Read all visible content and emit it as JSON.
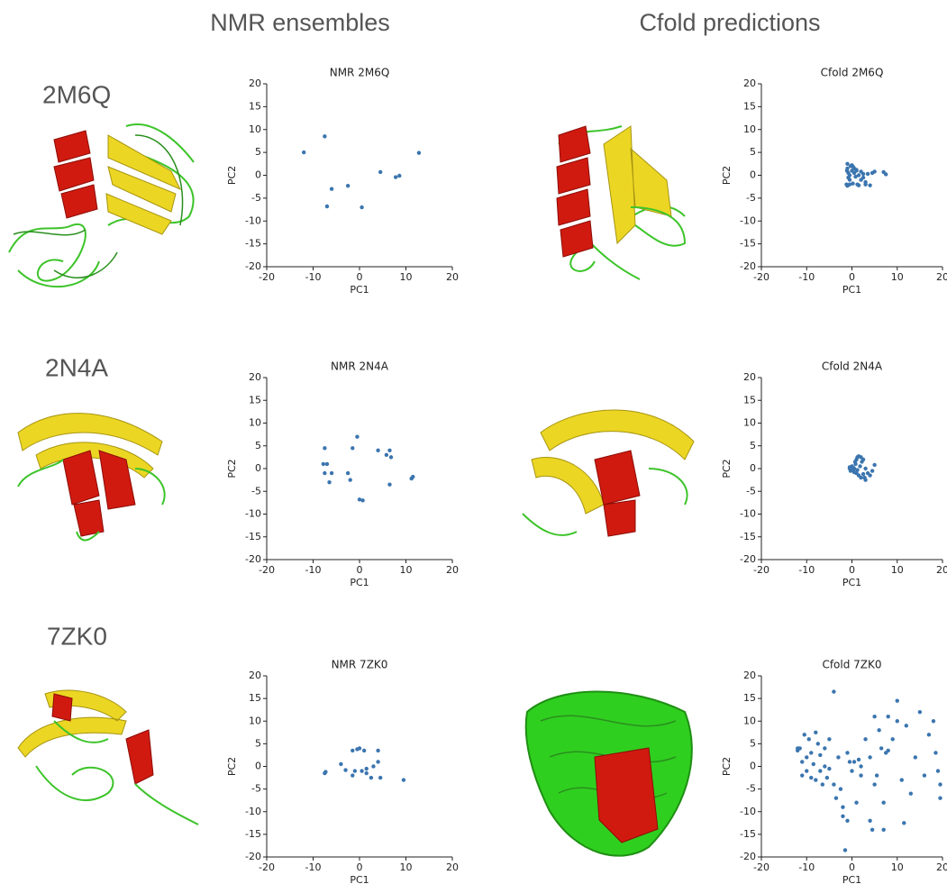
{
  "column_headers": [
    "NMR ensembles",
    "Cfold predictions"
  ],
  "row_labels": [
    "2M6Q",
    "2N4A",
    "7ZK0"
  ],
  "chart_data": [
    {
      "type": "scatter",
      "title": "NMR 2M6Q",
      "xlabel": "PC1",
      "ylabel": "PC2",
      "color": "#3b75af",
      "x": [
        -12,
        -7.5,
        -6,
        -7,
        -2.5,
        0.5,
        4.5,
        7.8,
        8.6,
        12.8
      ],
      "y": [
        5,
        8.5,
        -3,
        -6.8,
        -2.3,
        -7,
        0.7,
        -0.4,
        -0.1,
        4.9
      ],
      "xlim": [
        -20,
        20
      ],
      "ylim": [
        -20,
        20
      ],
      "xticks": [
        -20,
        -10,
        0,
        10,
        20
      ],
      "yticks": [
        -20,
        -15,
        -10,
        -5,
        0,
        5,
        10,
        15,
        20
      ]
    },
    {
      "type": "scatter",
      "title": "Cfold 2M6Q",
      "xlabel": "PC1",
      "ylabel": "PC2",
      "color": "#3b75af",
      "x": [
        -1,
        -1,
        -0.8,
        -0.5,
        -0.5,
        -1.2,
        -0.3,
        0,
        0.2,
        0.5,
        0.8,
        1,
        1.2,
        1.5,
        2,
        2.5,
        3,
        3.5,
        4,
        4.5,
        5,
        -1,
        -0.5,
        0,
        0.5,
        1,
        2,
        3,
        1.5,
        -0.8,
        0.3,
        7,
        7.5,
        -1.1,
        2.5
      ],
      "y": [
        2.5,
        1.5,
        0.5,
        0,
        -1,
        -2,
        2,
        1,
        -1.8,
        0.5,
        -0.3,
        1,
        -2,
        0,
        0.8,
        -0.5,
        -2,
        0.3,
        -2.2,
        0.5,
        0.8,
        -2.3,
        -2,
        2.2,
        1.5,
        1.2,
        -1,
        -1.5,
        -2.2,
        -0.5,
        1.8,
        0.7,
        0.2,
        1,
        0.3
      ],
      "xlim": [
        -20,
        20
      ],
      "ylim": [
        -20,
        20
      ],
      "xticks": [
        -20,
        -10,
        0,
        10,
        20
      ],
      "yticks": [
        -20,
        -15,
        -10,
        -5,
        0,
        5,
        10,
        15,
        20
      ]
    },
    {
      "type": "scatter",
      "title": "NMR 2N4A",
      "xlabel": "PC1",
      "ylabel": "PC2",
      "color": "#3b75af",
      "x": [
        -7.5,
        -7.8,
        -7,
        -7.5,
        -6,
        -6.5,
        -2.5,
        -2,
        -1.5,
        -0.5,
        0,
        0.7,
        4,
        5.8,
        6.5,
        6.8,
        6.5,
        11.2,
        11.5
      ],
      "y": [
        4.5,
        1,
        1,
        -1,
        -1,
        -3,
        -1,
        -2.5,
        4.5,
        7,
        -6.8,
        -7,
        4,
        3,
        4,
        2.5,
        -3.5,
        -2.2,
        -1.8
      ],
      "xlim": [
        -20,
        20
      ],
      "ylim": [
        -20,
        20
      ],
      "xticks": [
        -20,
        -10,
        0,
        10,
        20
      ],
      "yticks": [
        -20,
        -15,
        -10,
        -5,
        0,
        5,
        10,
        15,
        20
      ]
    },
    {
      "type": "scatter",
      "title": "Cfold 2N4A",
      "xlabel": "PC1",
      "ylabel": "PC2",
      "color": "#3b75af",
      "x": [
        -0.5,
        -0.3,
        0,
        0.2,
        0.5,
        0.8,
        1,
        1.2,
        1.5,
        2,
        2.2,
        2.5,
        3,
        3.5,
        4,
        5,
        1,
        0.5,
        1.5,
        2,
        -0.5,
        0,
        3,
        2.5,
        1.8,
        0.3,
        1.2,
        4.5,
        2.8,
        0.7
      ],
      "y": [
        0,
        -0.5,
        0.5,
        -0.3,
        0,
        1,
        2,
        2.5,
        2.7,
        2.5,
        1.5,
        2,
        0,
        -1,
        -1.5,
        0.8,
        -1,
        -0.8,
        -1.5,
        -2,
        0.3,
        -0.2,
        -2.5,
        -1.2,
        0.5,
        0.2,
        -0.3,
        -0.5,
        -2,
        1.5
      ],
      "xlim": [
        -20,
        20
      ],
      "ylim": [
        -20,
        20
      ],
      "xticks": [
        -20,
        -10,
        0,
        10,
        20
      ],
      "yticks": [
        -20,
        -15,
        -10,
        -5,
        0,
        5,
        10,
        15,
        20
      ]
    },
    {
      "type": "scatter",
      "title": "NMR 7ZK0",
      "xlabel": "PC1",
      "ylabel": "PC2",
      "color": "#3b75af",
      "x": [
        -7.5,
        -7.3,
        -4,
        -3,
        -1.5,
        -1.5,
        -0.5,
        -1,
        0,
        0.5,
        1,
        1.5,
        1.5,
        2.5,
        3,
        4,
        4,
        4.5,
        9.5
      ],
      "y": [
        -1.5,
        -1.2,
        0.5,
        -0.8,
        -2,
        3.5,
        3.8,
        -1,
        4,
        -1,
        3.5,
        -0.5,
        -1.5,
        -2.5,
        0,
        3.5,
        1,
        -2.5,
        -3
      ],
      "xlim": [
        -20,
        20
      ],
      "ylim": [
        -20,
        20
      ],
      "xticks": [
        -20,
        -10,
        0,
        10,
        20
      ],
      "yticks": [
        -20,
        -15,
        -10,
        -5,
        0,
        5,
        10,
        15,
        20
      ]
    },
    {
      "type": "scatter",
      "title": "Cfold 7ZK0",
      "xlabel": "PC1",
      "ylabel": "PC2",
      "color": "#3b75af",
      "x": [
        -12,
        -11.5,
        -11,
        -11,
        -10.5,
        -10,
        -10,
        -9.5,
        -9,
        -9,
        -8.5,
        -8,
        -8,
        -7.5,
        -7,
        -7,
        -6.5,
        -6,
        -6,
        -5.5,
        -5,
        -5,
        -4,
        -4,
        -3,
        -2.5,
        -2,
        -2,
        -1.5,
        -1,
        -0.5,
        0,
        0.5,
        1,
        1.5,
        2,
        3,
        4,
        4,
        4.5,
        5,
        5,
        5.5,
        6,
        6.5,
        7,
        7,
        7.5,
        8,
        9,
        10,
        10,
        11,
        11.5,
        12,
        13,
        14,
        15,
        16,
        17,
        18,
        18.5,
        19,
        19.5,
        19.5,
        -3.5,
        8,
        2,
        -1,
        -12
      ],
      "y": [
        4,
        4,
        -2,
        1,
        7,
        2,
        -1,
        6,
        3,
        -2.5,
        0.5,
        7.5,
        -3,
        5,
        2.5,
        -1,
        -4,
        4,
        0,
        -2.5,
        6,
        -0.5,
        16.5,
        -4,
        2,
        -5,
        -9,
        -11,
        -18.5,
        -12,
        1,
        -1,
        1,
        -8,
        1.5,
        0,
        6,
        -12,
        2,
        -14,
        11,
        -4,
        -2,
        8,
        4,
        -8,
        -14,
        3,
        3.5,
        6,
        14.5,
        10,
        -3,
        -12.5,
        9,
        -6,
        2,
        12,
        -2,
        7,
        10,
        3,
        -1,
        -4,
        -7,
        -7,
        11,
        -2,
        3,
        3.5
      ],
      "xlim": [
        -20,
        20
      ],
      "ylim": [
        -20,
        20
      ],
      "xticks": [
        -20,
        -10,
        0,
        10,
        20
      ],
      "yticks": [
        -20,
        -15,
        -10,
        -5,
        0,
        5,
        10,
        15,
        20
      ]
    }
  ]
}
